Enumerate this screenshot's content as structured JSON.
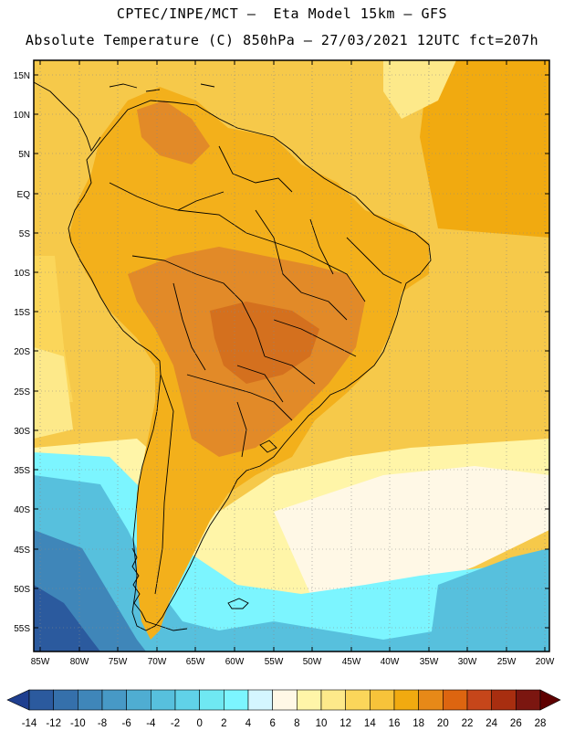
{
  "header": {
    "line1": "CPTEC/INPE/MCT –  Eta Model 15km – GFS",
    "line2": "Absolute Temperature (C) 850hPa – 27/03/2021 12UTC fct=207h"
  },
  "map": {
    "lat_labels": [
      "15N",
      "10N",
      "5N",
      "EQ",
      "5S",
      "10S",
      "15S",
      "20S",
      "25S",
      "30S",
      "35S",
      "40S",
      "45S",
      "50S",
      "55S"
    ],
    "lon_labels": [
      "85W",
      "80W",
      "75W",
      "70W",
      "65W",
      "60W",
      "55W",
      "50W",
      "45W",
      "40W",
      "35W",
      "30W",
      "25W",
      "20W"
    ]
  },
  "colorbar": {
    "labels": [
      "-14",
      "-12",
      "-10",
      "-8",
      "-6",
      "-4",
      "-2",
      "0",
      "2",
      "4",
      "6",
      "8",
      "10",
      "12",
      "14",
      "16",
      "18",
      "20",
      "22",
      "24",
      "26",
      "28"
    ],
    "colors": [
      "#1f3f8f",
      "#2b5a9e",
      "#3570ab",
      "#3f86b9",
      "#4799c6",
      "#4fadd2",
      "#57c0dd",
      "#60d2e8",
      "#6fe8f2",
      "#7cf5ff",
      "#d4f6ff",
      "#fff8e6",
      "#fff5a8",
      "#fde98a",
      "#fbd65a",
      "#f7c33a",
      "#f1aa10",
      "#e78918",
      "#dd6510",
      "#c6461a",
      "#a82e10",
      "#7b1610",
      "#5e0000"
    ]
  },
  "colors": {
    "land_warm": "#f3b01b",
    "land_hot": "#e28a28",
    "land_hottest": "#d4701e",
    "ocean_warm": "#f6c94a",
    "ocean_mild": "#fde98a",
    "ocean_cool": "#fff5a8",
    "ocean_pale": "#fff8e6",
    "cold_1": "#7cf5ff",
    "cold_2": "#57c0dd",
    "cold_3": "#3f86b9",
    "cold_4": "#2b5a9e"
  }
}
